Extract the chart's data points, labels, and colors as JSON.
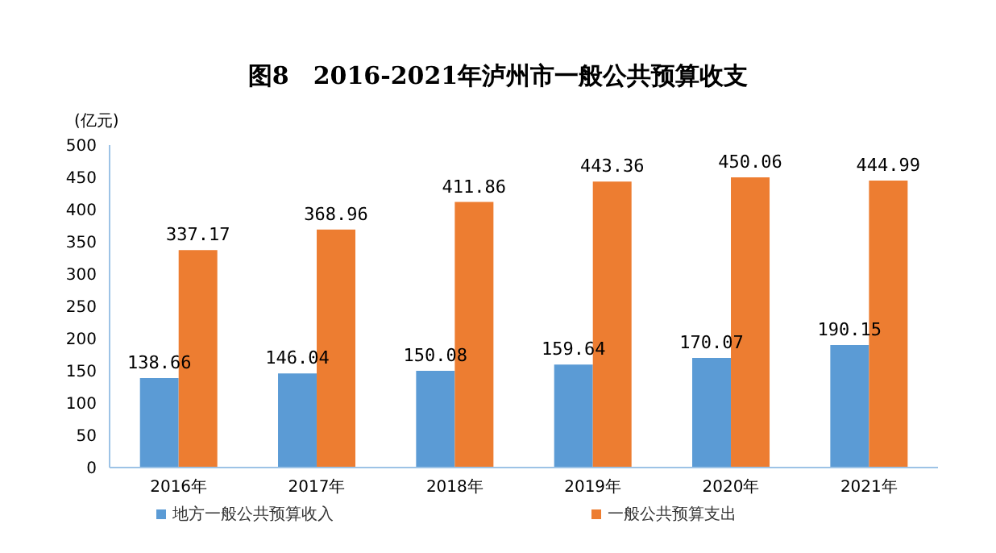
{
  "chart_data": {
    "type": "bar",
    "title": "图8　2016-2021年泸州市一般公共预算收支",
    "ylabel": "(亿元)",
    "categories": [
      "2016年",
      "2017年",
      "2018年",
      "2019年",
      "2020年",
      "2021年"
    ],
    "series": [
      {
        "name": "地方一般公共预算收入",
        "color": "#5b9bd5",
        "values": [
          138.66,
          146.04,
          150.08,
          159.64,
          170.07,
          190.15
        ]
      },
      {
        "name": "一般公共预算支出",
        "color": "#ed7d31",
        "values": [
          337.17,
          368.96,
          411.86,
          443.36,
          450.06,
          444.99
        ]
      }
    ],
    "ylim": [
      0,
      500
    ],
    "yticks": [
      0,
      50,
      100,
      150,
      200,
      250,
      300,
      350,
      400,
      450,
      500
    ],
    "grid": false,
    "legend": "bottom",
    "data_labels": true
  }
}
